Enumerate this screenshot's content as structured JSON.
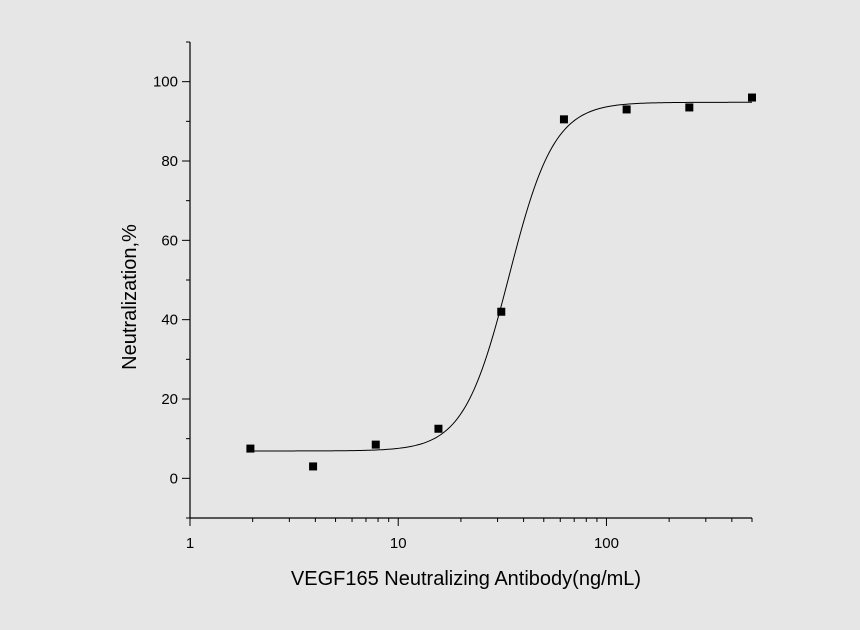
{
  "chart_data": {
    "type": "scatter",
    "title": "",
    "xlabel": "VEGF165 Neutralizing Antibody(ng/mL)",
    "ylabel": "Neutralization,%",
    "xscale": "log",
    "xlim": [
      1,
      500
    ],
    "ylim": [
      -10,
      110
    ],
    "xticks": [
      1,
      10,
      100
    ],
    "xtick_labels": [
      "1",
      "10",
      "100"
    ],
    "yticks": [
      0,
      20,
      40,
      60,
      80,
      100
    ],
    "ytick_labels": [
      "0",
      "20",
      "40",
      "60",
      "80",
      "100"
    ],
    "grid": false,
    "legend": "none",
    "series": [
      {
        "marker": "square",
        "x": [
          1.95,
          3.9,
          7.8,
          15.6,
          31.25,
          62.5,
          125,
          250,
          500
        ],
        "y": [
          7.5,
          3.0,
          8.5,
          12.5,
          42.0,
          90.5,
          93.0,
          93.5,
          96.0
        ]
      }
    ],
    "fit_curve": {
      "model": "four-parameter logistic",
      "bottom": 6.9,
      "top": 94.8,
      "ec50": 34,
      "hill": 4.0,
      "x_range": [
        1.95,
        500
      ]
    }
  }
}
